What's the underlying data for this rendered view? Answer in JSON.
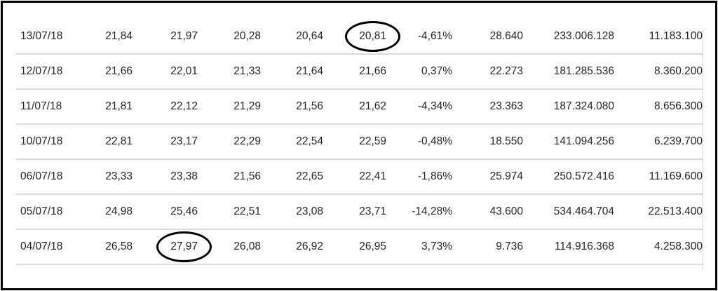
{
  "table": {
    "rows": [
      {
        "cells": [
          "13/07/18",
          "21,84",
          "21,97",
          "20,28",
          "20,64",
          "20,81",
          "-4,61%",
          "28.640",
          "233.006.128",
          "11.183.100"
        ],
        "circled": [
          5
        ]
      },
      {
        "cells": [
          "12/07/18",
          "21,66",
          "22,01",
          "21,33",
          "21,64",
          "21,66",
          "0,37%",
          "22.273",
          "181.285.536",
          "8.360.200"
        ],
        "circled": []
      },
      {
        "cells": [
          "11/07/18",
          "21,81",
          "22,12",
          "21,29",
          "21,56",
          "21,62",
          "-4,34%",
          "23.363",
          "187.324.080",
          "8.656.300"
        ],
        "circled": []
      },
      {
        "cells": [
          "10/07/18",
          "22,81",
          "23,17",
          "22,29",
          "22,54",
          "22,59",
          "-0,48%",
          "18.550",
          "141.094.256",
          "6.239.700"
        ],
        "circled": []
      },
      {
        "cells": [
          "06/07/18",
          "23,33",
          "23,38",
          "21,56",
          "22,65",
          "22,41",
          "-1,86%",
          "25.974",
          "250.572.416",
          "11.169.600"
        ],
        "circled": []
      },
      {
        "cells": [
          "05/07/18",
          "24,98",
          "25,46",
          "22,51",
          "23,08",
          "23,71",
          "-14,28%",
          "43.600",
          "534.464.704",
          "22.513.400"
        ],
        "circled": []
      },
      {
        "cells": [
          "04/07/18",
          "26,58",
          "27,97",
          "26,08",
          "26,92",
          "26,95",
          "3,73%",
          "9.736",
          "114.916.368",
          "4.258.300"
        ],
        "circled": [
          2
        ]
      }
    ]
  },
  "colors": {
    "text": "#262626",
    "row_divider": "#d9d9d9",
    "highlight_circle": "#000000"
  }
}
